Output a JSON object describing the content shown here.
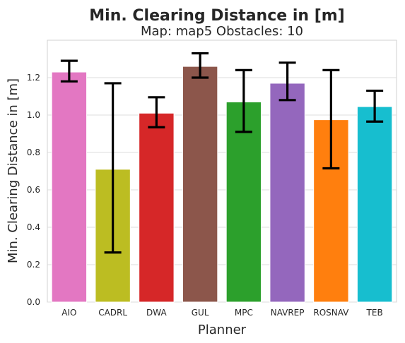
{
  "chart_data": {
    "type": "bar",
    "title": "Min. Clearing Distance in [m]",
    "subtitle": "Map: map5 Obstacles: 10",
    "xlabel": "Planner",
    "ylabel": "Min. Clearing Distance in [m]",
    "ylim": [
      0,
      1.4
    ],
    "yticks": [
      "0.0",
      "0.2",
      "0.4",
      "0.6",
      "0.8",
      "1.0",
      "1.2"
    ],
    "grid": true,
    "categories": [
      "AIO",
      "CADRL",
      "DWA",
      "GUL",
      "MPC",
      "NAVREP",
      "ROSNAV",
      "TEB"
    ],
    "values": [
      1.23,
      0.71,
      1.01,
      1.26,
      1.07,
      1.17,
      0.975,
      1.045
    ],
    "error_low": [
      1.18,
      0.265,
      0.935,
      1.2,
      0.91,
      1.08,
      0.715,
      0.965
    ],
    "error_high": [
      1.29,
      1.17,
      1.095,
      1.33,
      1.24,
      1.28,
      1.24,
      1.13
    ],
    "colors": [
      "#e377c2",
      "#bcbd22",
      "#d62728",
      "#8c564b",
      "#2ca02c",
      "#9467bd",
      "#ff7f0e",
      "#17becf"
    ]
  }
}
